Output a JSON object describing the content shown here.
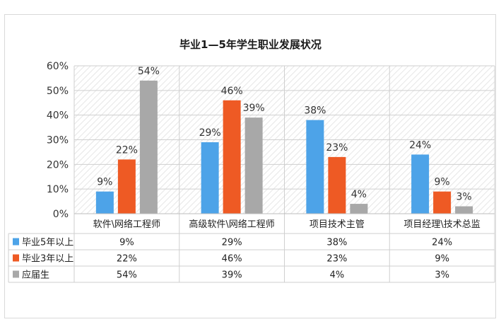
{
  "chart_data": {
    "type": "bar",
    "title": "毕业1—5年学生职业发展状况",
    "categories": [
      "软件\\网络工程师",
      "高级软件\\网络工程师",
      "项目技术主管",
      "项目经理\\技术总监"
    ],
    "series": [
      {
        "name": "毕业5年以上",
        "color": "#4da3e8",
        "values": [
          9,
          29,
          38,
          24
        ],
        "labels": [
          "9%",
          "29%",
          "38%",
          "24%"
        ]
      },
      {
        "name": "毕业3年以上",
        "color": "#ee5a24",
        "values": [
          22,
          46,
          23,
          9
        ],
        "labels": [
          "22%",
          "46%",
          "23%",
          "9%"
        ]
      },
      {
        "name": "应届生",
        "color": "#a8a8a8",
        "values": [
          54,
          39,
          4,
          3
        ],
        "labels": [
          "54%",
          "39%",
          "4%",
          "3%"
        ]
      }
    ],
    "y_ticks": [
      "0%",
      "10%",
      "20%",
      "30%",
      "40%",
      "50%",
      "60%"
    ],
    "ylim": [
      0,
      60
    ],
    "data_table": true,
    "grid": true
  }
}
